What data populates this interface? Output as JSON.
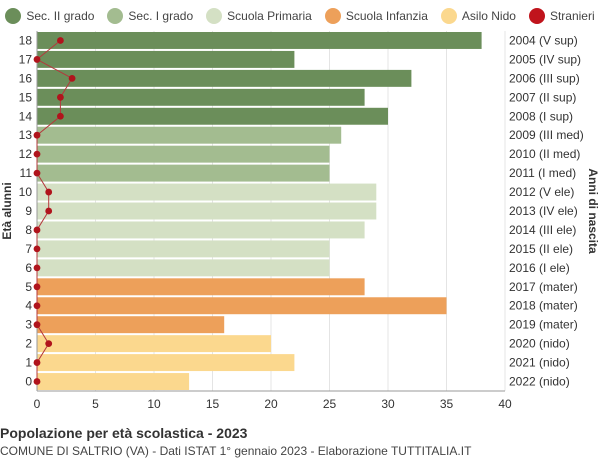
{
  "chart_data": {
    "type": "bar",
    "orientation": "horizontal",
    "ylabel_left": "Età alunni",
    "ylabel_right": "Anni di nascita",
    "xlim": [
      0,
      40
    ],
    "xticks": [
      0,
      5,
      10,
      15,
      20,
      25,
      30,
      35,
      40
    ],
    "legend": [
      {
        "name": "Sec. II grado",
        "color": "#6b8e5a"
      },
      {
        "name": "Sec. I grado",
        "color": "#a3bc90"
      },
      {
        "name": "Scuola Primaria",
        "color": "#d4e0c4"
      },
      {
        "name": "Scuola Infanzia",
        "color": "#eda05a"
      },
      {
        "name": "Asilo Nido",
        "color": "#fbd88e"
      },
      {
        "name": "Stranieri",
        "color": "#c0141c"
      }
    ],
    "rows": [
      {
        "age": "18",
        "birth": "2004 (V sup)",
        "value": 38,
        "stranieri": 2,
        "cat": 0
      },
      {
        "age": "17",
        "birth": "2005 (IV sup)",
        "value": 22,
        "stranieri": 0,
        "cat": 0
      },
      {
        "age": "16",
        "birth": "2006 (III sup)",
        "value": 32,
        "stranieri": 3,
        "cat": 0
      },
      {
        "age": "15",
        "birth": "2007 (II sup)",
        "value": 28,
        "stranieri": 2,
        "cat": 0
      },
      {
        "age": "14",
        "birth": "2008 (I sup)",
        "value": 30,
        "stranieri": 2,
        "cat": 0
      },
      {
        "age": "13",
        "birth": "2009 (III med)",
        "value": 26,
        "stranieri": 0,
        "cat": 1
      },
      {
        "age": "12",
        "birth": "2010 (II med)",
        "value": 25,
        "stranieri": 0,
        "cat": 1
      },
      {
        "age": "11",
        "birth": "2011 (I med)",
        "value": 25,
        "stranieri": 0,
        "cat": 1
      },
      {
        "age": "10",
        "birth": "2012 (V ele)",
        "value": 29,
        "stranieri": 1,
        "cat": 2
      },
      {
        "age": "9",
        "birth": "2013 (IV ele)",
        "value": 29,
        "stranieri": 1,
        "cat": 2
      },
      {
        "age": "8",
        "birth": "2014 (III ele)",
        "value": 28,
        "stranieri": 0,
        "cat": 2
      },
      {
        "age": "7",
        "birth": "2015 (II ele)",
        "value": 25,
        "stranieri": 0,
        "cat": 2
      },
      {
        "age": "6",
        "birth": "2016 (I ele)",
        "value": 25,
        "stranieri": 0,
        "cat": 2
      },
      {
        "age": "5",
        "birth": "2017 (mater)",
        "value": 28,
        "stranieri": 0,
        "cat": 3
      },
      {
        "age": "4",
        "birth": "2018 (mater)",
        "value": 35,
        "stranieri": 0,
        "cat": 3
      },
      {
        "age": "3",
        "birth": "2019 (mater)",
        "value": 16,
        "stranieri": 0,
        "cat": 3
      },
      {
        "age": "2",
        "birth": "2020 (nido)",
        "value": 20,
        "stranieri": 1,
        "cat": 4
      },
      {
        "age": "1",
        "birth": "2021 (nido)",
        "value": 22,
        "stranieri": 0,
        "cat": 4
      },
      {
        "age": "0",
        "birth": "2022 (nido)",
        "value": 13,
        "stranieri": 0,
        "cat": 4
      }
    ]
  },
  "footer": {
    "title": "Popolazione per età scolastica - 2023",
    "subtitle": "COMUNE DI SALTRIO (VA) - Dati ISTAT 1° gennaio 2023 - Elaborazione TUTTITALIA.IT"
  }
}
